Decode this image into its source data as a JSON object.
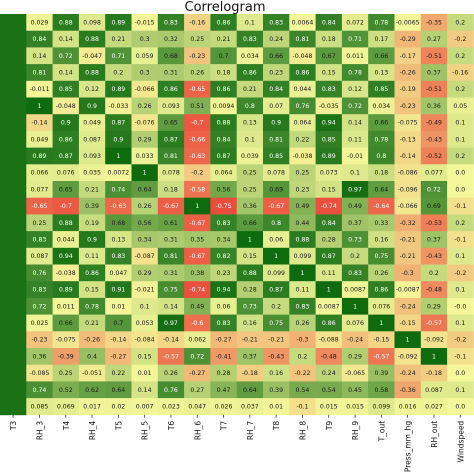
{
  "chart_data": {
    "type": "heatmap",
    "title": "Correlogram",
    "x_tick_labels": [
      "T3",
      "RH_3",
      "T4",
      "RH_4",
      "T5",
      "RH_5",
      "T6",
      "RH_6",
      "T7",
      "RH_7",
      "T8",
      "RH_8",
      "T9",
      "RH_9",
      "T_out",
      "Press_mm_hg",
      "RH_out",
      "Windspeed"
    ],
    "color_scale": {
      "low": "#e8141c",
      "mid": "#f4f79a",
      "high": "#0e6b0e",
      "vmin": -1,
      "vmax": 1
    },
    "rows": [
      [
        "",
        "0.029",
        "0.88",
        "0.098",
        "0.89",
        "-0.015",
        "0.83",
        "-0.16",
        "0.86",
        "0.1",
        "0.83",
        "0.0064",
        "0.84",
        "0.072",
        "0.78",
        "-0.0065",
        "-0.35",
        "0.2"
      ],
      [
        "",
        "0.84",
        "0.14",
        "0.88",
        "0.21",
        "0.3",
        "0.32",
        "0.25",
        "0.21",
        "0.83",
        "0.24",
        "0.81",
        "0.18",
        "0.71",
        "0.17",
        "-0.29",
        "0.27",
        "-0.2"
      ],
      [
        "",
        "0.14",
        "0.72",
        "-0.047",
        "0.71",
        "0.059",
        "0.68",
        "-0.23",
        "0.7",
        "0.034",
        "0.66",
        "-0.048",
        "0.67",
        "0.011",
        "0.66",
        "-0.17",
        "-0.51",
        "0.2"
      ],
      [
        "",
        "0.81",
        "0.14",
        "0.88",
        "0.2",
        "0.3",
        "0.31",
        "0.26",
        "0.18",
        "0.86",
        "0.23",
        "0.86",
        "0.15",
        "0.78",
        "0.13",
        "-0.26",
        "0.37",
        "-0.16"
      ],
      [
        "",
        "-0.011",
        "0.85",
        "0.12",
        "0.89",
        "-0.066",
        "0.86",
        "-0.65",
        "0.86",
        "0.21",
        "0.84",
        "0.044",
        "0.83",
        "0.12",
        "0.85",
        "-0.19",
        "-0.51",
        "0.2"
      ],
      [
        "",
        "1",
        "-0.048",
        "0.9",
        "-0.033",
        "0.26",
        "0.093",
        "0.51",
        "0.0094",
        "0.8",
        "0.07",
        "0.76",
        "-0.035",
        "0.72",
        "0.034",
        "-0.23",
        "0.36",
        "0.05"
      ],
      [
        "",
        "-0.14",
        "0.9",
        "0.049",
        "0.87",
        "-0.076",
        "0.65",
        "-0.7",
        "0.88",
        "0.13",
        "0.9",
        "0.064",
        "0.94",
        "0.14",
        "0.66",
        "-0.075",
        "-0.49",
        "0.1"
      ],
      [
        "",
        "0.049",
        "0.86",
        "0.087",
        "0.9",
        "0.29",
        "0.87",
        "-0.66",
        "0.84",
        "0.1",
        "0.81",
        "0.22",
        "0.85",
        "0.11",
        "0.78",
        "-0.13",
        "-0.43",
        "0.1"
      ],
      [
        "",
        "0.89",
        "0.87",
        "0.093",
        "1",
        "0.033",
        "0.81",
        "-0.63",
        "0.87",
        "0.039",
        "0.85",
        "-0.038",
        "0.89",
        "-0.01",
        "0.8",
        "-0.14",
        "-0.52",
        "0.2"
      ],
      [
        "",
        "0.066",
        "0.076",
        "0.035",
        "0.0072",
        "1",
        "0.078",
        "-0.2",
        "0.064",
        "0.25",
        "0.078",
        "0.25",
        "0.073",
        "0.1",
        "0.18",
        "-0.086",
        "0.077",
        "0.0"
      ],
      [
        "",
        "0.077",
        "0.65",
        "0.21",
        "0.74",
        "0.64",
        "0.18",
        "-0.58",
        "0.56",
        "0.25",
        "0.69",
        "0.23",
        "0.15",
        "0.97",
        "0.64",
        "-0.096",
        "0.72",
        "0.0"
      ],
      [
        "",
        "-0.65",
        "-0.7",
        "0.39",
        "-0.63",
        "0.26",
        "-0.67",
        "1",
        "-0.75",
        "0.36",
        "-0.67",
        "0.49",
        "-0.74",
        "0.49",
        "-0.64",
        "-0.066",
        "0.69",
        "-0.1"
      ],
      [
        "",
        "0.25",
        "0.88",
        "0.19",
        "0.68",
        "0.56",
        "0.61",
        "-0.67",
        "0.83",
        "0.66",
        "0.8",
        "0.44",
        "0.84",
        "0.37",
        "0.33",
        "-0.32",
        "-0.53",
        "0.2"
      ],
      [
        "",
        "0.83",
        "0.044",
        "0.9",
        "0.13",
        "0.34",
        "0.31",
        "0.35",
        "0.34",
        "1",
        "0.06",
        "0.88",
        "0.28",
        "0.73",
        "0.16",
        "-0.21",
        "0.37",
        "-0.1"
      ],
      [
        "",
        "0.087",
        "0.94",
        "0.11",
        "0.83",
        "-0.087",
        "0.81",
        "-0.67",
        "0.82",
        "0.15",
        "1",
        "0.099",
        "0.87",
        "0.2",
        "0.75",
        "-0.21",
        "-0.43",
        "0.1"
      ],
      [
        "",
        "0.76",
        "-0.038",
        "0.86",
        "0.047",
        "0.29",
        "0.31",
        "0.38",
        "0.23",
        "0.88",
        "0.099",
        "1",
        "0.11",
        "0.83",
        "0.26",
        "-0.3",
        "0.2",
        "-0.2"
      ],
      [
        "",
        "0.83",
        "0.89",
        "0.15",
        "0.91",
        "-0.021",
        "0.75",
        "-0.74",
        "0.94",
        "0.28",
        "0.87",
        "0.11",
        "1",
        "0.0087",
        "0.86",
        "-0.0087",
        "-0.48",
        "0.1"
      ],
      [
        "",
        "0.72",
        "0.011",
        "0.78",
        "0.01",
        "0.1",
        "0.14",
        "0.49",
        "0.06",
        "0.73",
        "0.2",
        "0.83",
        "0.0087",
        "1",
        "0.076",
        "-0.24",
        "0.29",
        "-0.0"
      ],
      [
        "",
        "0.025",
        "0.66",
        "0.21",
        "0.7",
        "0.053",
        "0.97",
        "-0.6",
        "0.83",
        "0.16",
        "0.75",
        "0.26",
        "0.86",
        "0.076",
        "1",
        "-0.15",
        "-0.57",
        "0.1"
      ],
      [
        "",
        "-0.23",
        "-0.075",
        "-0.26",
        "-0.14",
        "-0.084",
        "-0.14",
        "0.062",
        "-0.27",
        "-0.21",
        "-0.21",
        "-0.3",
        "-0.088",
        "-0.24",
        "-0.15",
        "1",
        "-0.092",
        "-0.2"
      ],
      [
        "",
        "0.36",
        "-0.39",
        "0.4",
        "-0.27",
        "0.15",
        "-0.57",
        "0.72",
        "-0.41",
        "0.37",
        "-0.43",
        "0.2",
        "-0.48",
        "0.29",
        "-0.57",
        "-0.092",
        "1",
        "-0.1"
      ],
      [
        "",
        "-0.085",
        "0.25",
        "-0.051",
        "0.22",
        "0.01",
        "0.26",
        "-0.27",
        "0.28",
        "-0.18",
        "0.16",
        "-0.22",
        "0.24",
        "-0.065",
        "0.39",
        "-0.24",
        "-0.18",
        "0.0"
      ],
      [
        "",
        "0.74",
        "0.52",
        "0.62",
        "0.64",
        "0.14",
        "0.76",
        "0.27",
        "0.47",
        "0.64",
        "0.39",
        "0.54",
        "0.54",
        "0.45",
        "0.58",
        "-0.36",
        "0.087",
        "0.1"
      ],
      [
        "",
        "0.085",
        "0.069",
        "0.017",
        "0.02",
        "0.007",
        "0.023",
        "0.047",
        "0.026",
        "0.037",
        "0.01",
        "-0.1",
        "0.015",
        "0.015",
        "0.099",
        "0.016",
        "0.027",
        "0.0"
      ]
    ]
  }
}
